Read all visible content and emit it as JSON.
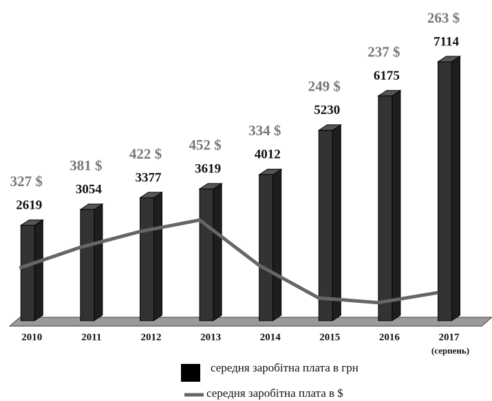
{
  "chart_data": {
    "type": "bar",
    "categories": [
      "2010",
      "2011",
      "2012",
      "2013",
      "2014",
      "2015",
      "2016",
      "2017"
    ],
    "x_annotation": "(серпень)",
    "series": [
      {
        "name": "середня заробітна плата в грн",
        "color": "#333333",
        "values": [
          2619,
          3054,
          3377,
          3619,
          4012,
          5230,
          6175,
          7114
        ]
      },
      {
        "name": "середня заробітна плата в $",
        "color": "#666666",
        "axis": "y2",
        "type": "line",
        "values": [
          327,
          381,
          422,
          452,
          334,
          249,
          237,
          263
        ],
        "value_labels": [
          "327 $",
          "381 $",
          "422 $",
          "452 $",
          "334 $",
          "249 $",
          "237 $",
          "263 $"
        ]
      }
    ],
    "ylim": [
      0,
      8000
    ],
    "y2lim": [
      190,
      948
    ]
  }
}
